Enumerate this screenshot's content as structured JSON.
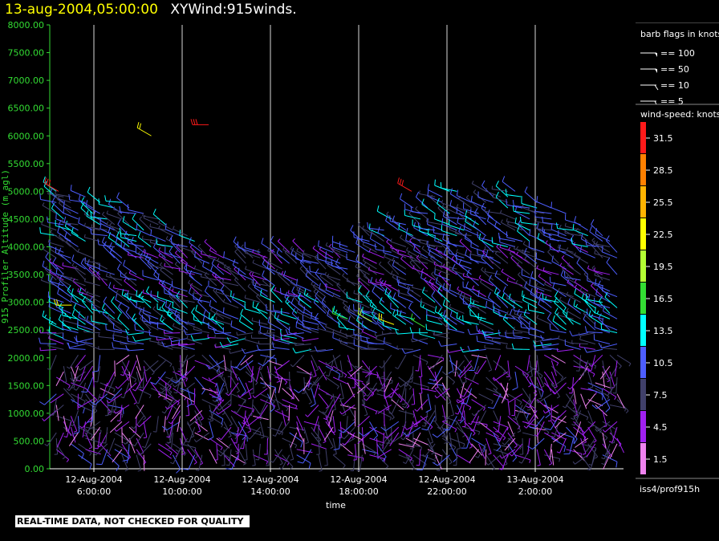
{
  "header": {
    "date_time": "13-aug-2004,05:00:00",
    "product": "XYWind:915winds."
  },
  "footer": {
    "disclaimer": "REAL-TIME DATA, NOT CHECKED FOR QUALITY",
    "source": "iss4/prof915h"
  },
  "legend": {
    "barb_title": "barb flags in knots",
    "barbs": [
      {
        "label": "== 100",
        "kind": "flag100"
      },
      {
        "label": "== 50",
        "kind": "flag50"
      },
      {
        "label": "== 10",
        "kind": "barb10"
      },
      {
        "label": "== 5",
        "kind": "barb5"
      }
    ],
    "speed_title": "wind-speed: knots",
    "speed_levels": [
      {
        "label": "31.5",
        "color": "#ff1a1a"
      },
      {
        "label": "28.5",
        "color": "#ff8000"
      },
      {
        "label": "25.5",
        "color": "#ffb300"
      },
      {
        "label": "22.5",
        "color": "#ffff00"
      },
      {
        "label": "19.5",
        "color": "#b3ff33"
      },
      {
        "label": "16.5",
        "color": "#33dd33"
      },
      {
        "label": "13.5",
        "color": "#00ffff"
      },
      {
        "label": "10.5",
        "color": "#4d5eff"
      },
      {
        "label": "7.5",
        "color": "#40406a"
      },
      {
        "label": "4.5",
        "color": "#a020f0"
      },
      {
        "label": "1.5",
        "color": "#ee82ee"
      }
    ]
  },
  "chart_data": {
    "type": "scatter",
    "subtype": "wind-barb time-height",
    "title": "13-aug-2004,05:00:00  XYWind:915winds.",
    "xlabel": "time",
    "ylabel": "915 Profiler Altitude (m agl)",
    "ylim": [
      0,
      8000
    ],
    "yticks": [
      "0.00",
      "500.00",
      "1000.00",
      "1500.00",
      "2000.00",
      "2500.00",
      "3000.00",
      "3500.00",
      "4000.00",
      "4500.00",
      "5000.00",
      "5500.00",
      "6000.00",
      "6500.00",
      "7000.00",
      "7500.00",
      "8000.00"
    ],
    "xlim_hours": [
      4.0,
      30.0
    ],
    "xticks": [
      {
        "hour": 6,
        "date": "12-Aug-2004",
        "time": "6:00:00"
      },
      {
        "hour": 10,
        "date": "12-Aug-2004",
        "time": "10:00:00"
      },
      {
        "hour": 14,
        "date": "12-Aug-2004",
        "time": "14:00:00"
      },
      {
        "hour": 18,
        "date": "12-Aug-2004",
        "time": "18:00:00"
      },
      {
        "hour": 22,
        "date": "12-Aug-2004",
        "time": "22:00:00"
      },
      {
        "hour": 26,
        "date": "13-Aug-2004",
        "time": "2:00:00"
      }
    ],
    "grid": "vertical lines at x ticks",
    "layers": [
      {
        "z0": 250,
        "z1": 2150,
        "speed": 6,
        "dir": 170
      },
      {
        "z0": 2150,
        "z1": 2500,
        "speed": 9,
        "dir": 275
      },
      {
        "z0": 2500,
        "z1": 3100,
        "speed": 11,
        "dir": 300
      },
      {
        "z0": 3100,
        "z1": 4000,
        "speed": 8,
        "dir": 300
      },
      {
        "z0": 4000,
        "z1": 5200,
        "speed": 10,
        "dir": 295
      }
    ],
    "highlights": [
      {
        "hour": 4.4,
        "alt": 5000,
        "speed": 31,
        "dir": 300
      },
      {
        "hour": 8.6,
        "alt": 6000,
        "speed": 23,
        "dir": 300
      },
      {
        "hour": 11.2,
        "alt": 6200,
        "speed": 31,
        "dir": 270
      },
      {
        "hour": 20.4,
        "alt": 5000,
        "speed": 31,
        "dir": 300
      },
      {
        "hour": 5.0,
        "alt": 2950,
        "speed": 22,
        "dir": 270
      },
      {
        "hour": 17.5,
        "alt": 2700,
        "speed": 17,
        "dir": 290
      },
      {
        "hour": 18.6,
        "alt": 2650,
        "speed": 20,
        "dir": 300
      },
      {
        "hour": 19.6,
        "alt": 2600,
        "speed": 22,
        "dir": 290
      },
      {
        "hour": 21.0,
        "alt": 2550,
        "speed": 17,
        "dir": 300
      }
    ]
  }
}
